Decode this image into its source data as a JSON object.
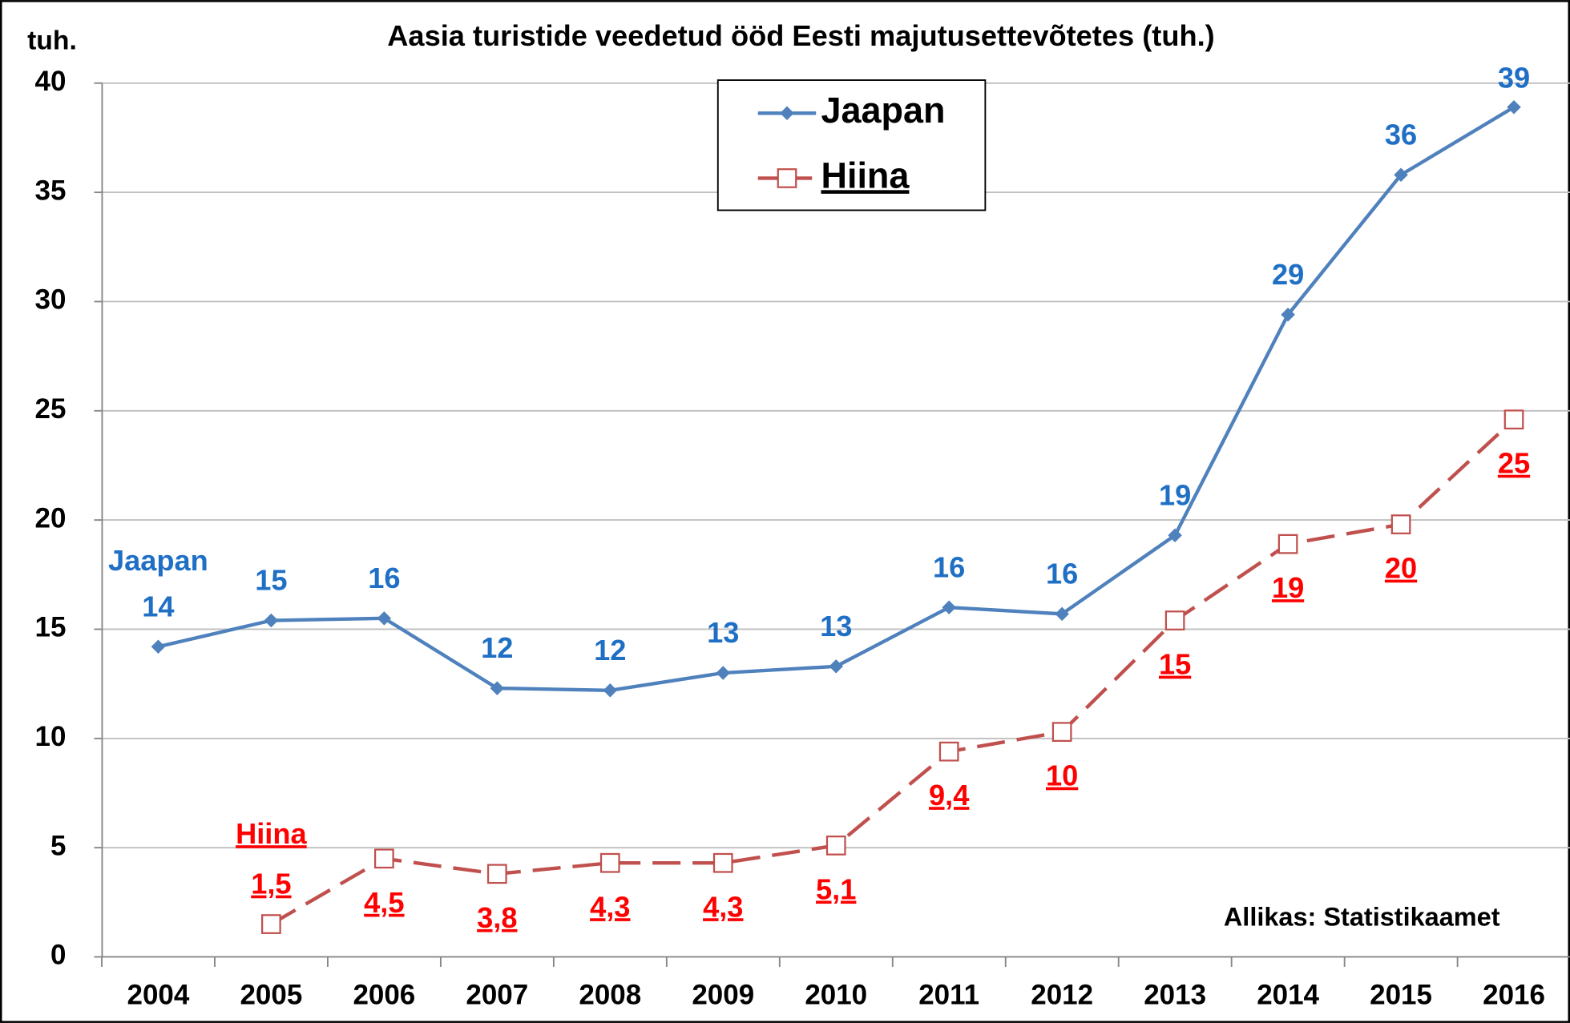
{
  "chart_data": {
    "type": "line",
    "title": "Aasia turistide veedetud ööd Eesti majutusettevõtetes (tuh.)",
    "y_label": "tuh.",
    "annotation": "Allikas: Statistikaamet",
    "categories": [
      "2004",
      "2005",
      "2006",
      "2007",
      "2008",
      "2009",
      "2010",
      "2011",
      "2012",
      "2013",
      "2014",
      "2015",
      "2016"
    ],
    "series": [
      {
        "name": "Jaapan",
        "color": "#4f81bd",
        "label_color": "#1f6fc5",
        "marker": "diamond",
        "values": [
          14.2,
          15.4,
          15.5,
          12.3,
          12.2,
          13.0,
          13.3,
          16.0,
          15.7,
          19.3,
          29.4,
          35.8,
          38.9
        ],
        "value_labels": [
          "14",
          "15",
          "16",
          "12",
          "12",
          "13",
          "13",
          "16",
          "16",
          "19",
          "29",
          "36",
          "39"
        ]
      },
      {
        "name": "Hiina",
        "color": "#c0504d",
        "label_color": "#ff0000",
        "marker": "square",
        "dashed": true,
        "values": [
          null,
          1.5,
          4.5,
          3.8,
          4.3,
          4.3,
          5.1,
          9.4,
          10.3,
          15.4,
          18.9,
          19.8,
          24.6
        ],
        "value_labels": [
          null,
          "1,5",
          "4,5",
          "3,8",
          "4,3",
          "4,3",
          "5,1",
          "9,4",
          "10",
          "15",
          "19",
          "20",
          "25"
        ]
      }
    ],
    "ylim": [
      0,
      40
    ],
    "yticks": [
      0,
      5,
      10,
      15,
      20,
      25,
      30,
      35,
      40
    ],
    "grid": true,
    "legend": "top"
  }
}
